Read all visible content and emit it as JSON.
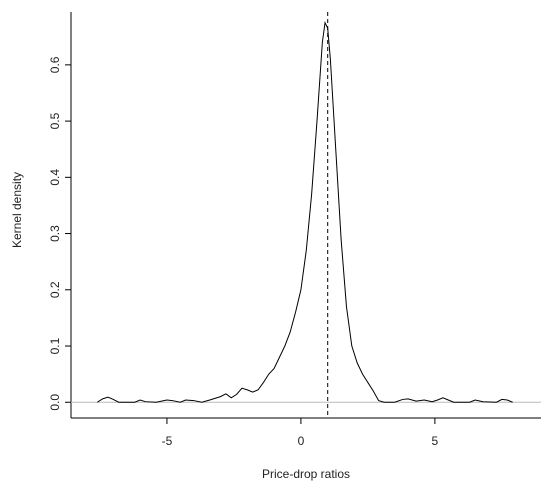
{
  "chart_data": {
    "type": "line",
    "xlabel": "Price-drop ratios",
    "ylabel": "Kernel density",
    "x": [
      -7.6,
      -7.4,
      -7.2,
      -7.0,
      -6.8,
      -6.2,
      -6.0,
      -5.8,
      -5.4,
      -5.0,
      -4.8,
      -4.5,
      -4.3,
      -4.0,
      -3.7,
      -3.4,
      -3.0,
      -2.8,
      -2.6,
      -2.4,
      -2.2,
      -2.0,
      -1.8,
      -1.6,
      -1.4,
      -1.2,
      -1.0,
      -0.8,
      -0.6,
      -0.4,
      -0.2,
      0,
      0.2,
      0.4,
      0.6,
      0.8,
      0.9,
      1.0,
      1.1,
      1.3,
      1.5,
      1.7,
      1.9,
      2.1,
      2.3,
      2.5,
      2.7,
      2.9,
      3.1,
      3.5,
      3.8,
      4.0,
      4.3,
      4.6,
      4.9,
      5.1,
      5.3,
      5.5,
      5.7,
      6.3,
      6.5,
      6.8,
      7.3,
      7.5,
      7.7,
      7.9
    ],
    "series": [
      {
        "color": "#000000",
        "values": [
          0,
          0.006,
          0.009,
          0.005,
          0,
          0,
          0.004,
          0.001,
          0,
          0.004,
          0.003,
          0,
          0.004,
          0.003,
          0,
          0.004,
          0.01,
          0.015,
          0.008,
          0.014,
          0.025,
          0.022,
          0.018,
          0.022,
          0.035,
          0.05,
          0.06,
          0.08,
          0.1,
          0.125,
          0.16,
          0.2,
          0.27,
          0.37,
          0.5,
          0.64,
          0.675,
          0.665,
          0.61,
          0.45,
          0.29,
          0.17,
          0.1,
          0.07,
          0.05,
          0.035,
          0.02,
          0.003,
          0,
          0,
          0.005,
          0.006,
          0.002,
          0.004,
          0.001,
          0.004,
          0.008,
          0.004,
          0,
          0,
          0.004,
          0.001,
          0,
          0.005,
          0.004,
          0
        ]
      }
    ],
    "xlim": [
      -8.58,
      8.96
    ],
    "ylim": [
      -0.028,
      0.694
    ],
    "xticks": [
      -5,
      0,
      5
    ],
    "yticks": [
      {
        "value": 0,
        "label": "0.0"
      },
      0.1,
      0.2,
      0.3,
      0.4,
      0.5,
      0.6
    ],
    "vline": 1,
    "vline_color": "#000000",
    "hline": 0,
    "hline_color": "#bbbbbb"
  }
}
